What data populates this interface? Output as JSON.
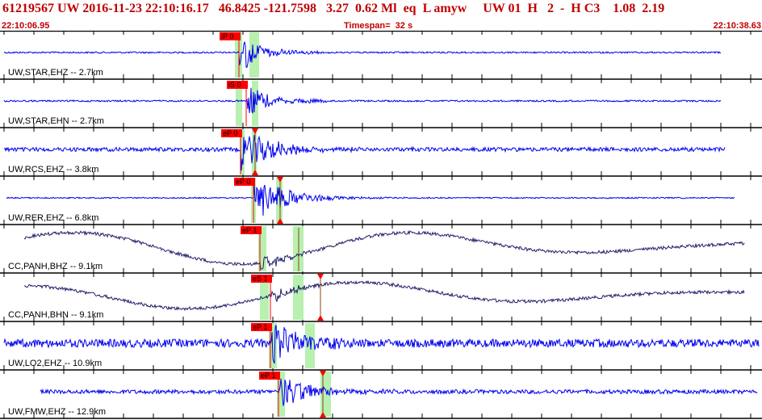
{
  "header": {
    "title": "61219567 UW 2016-11-23 22:10:16.17   46.8425 -121.7598   3.27  0.62 Ml  eq  L amyw     UW 01  H   2  -  H C3    1.08  2.19",
    "start_time": "22:10:06.95",
    "timespan": "Timespan=  32 s",
    "end_time": "22:10:38.63"
  },
  "colors": {
    "trace_blue": "#0000ee",
    "trace_dark": "#20206a",
    "pick_red": "#ff0000",
    "window_green": "#b8f0b0",
    "title_red": "#c00000"
  },
  "channels": [
    {
      "label": "UW,STAR,EHZ -- 2.7km",
      "pick": "iP 0",
      "color": "blue",
      "wave": "local",
      "amp": 1.0
    },
    {
      "label": "UW,STAR,EHN -- 2.7km",
      "pick": "iS 0",
      "color": "blue",
      "wave": "local",
      "amp": 0.9
    },
    {
      "label": "UW,RCS,EHZ -- 3.8km",
      "pick": "eP 0",
      "color": "blue",
      "wave": "noisy",
      "amp": 1.0
    },
    {
      "label": "UW,RER,EHZ -- 6.8km",
      "pick": "eP 0",
      "color": "blue",
      "wave": "quiet",
      "amp": 1.0
    },
    {
      "label": "CC,PANH,BHZ -- 9.1km",
      "pick": "eP 1",
      "color": "dark",
      "wave": "long",
      "amp": 1.0
    },
    {
      "label": "CC,PANH,BHN -- 9.1km",
      "pick": "eS 1",
      "color": "dark",
      "wave": "long",
      "amp": 0.8
    },
    {
      "label": "UW,LO2,EHZ -- 10.9km",
      "pick": "eP 1",
      "color": "blue",
      "wave": "veryNoisy",
      "amp": 1.0
    },
    {
      "label": "UW,FMW,EHZ -- 12.9km",
      "pick": "eP 1",
      "color": "blue",
      "wave": "noisy",
      "amp": 0.8
    }
  ]
}
